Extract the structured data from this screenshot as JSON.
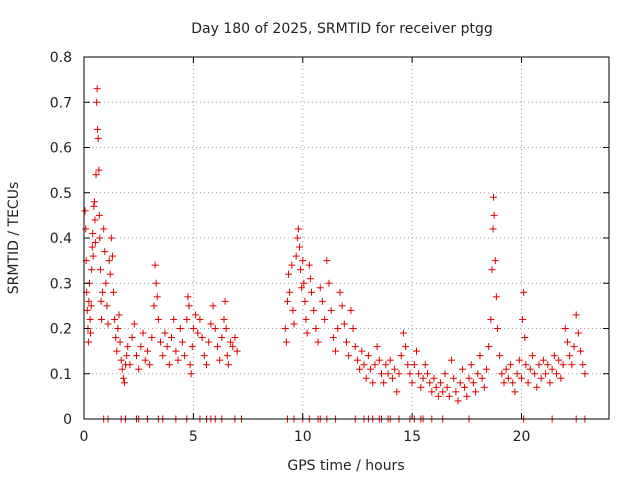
{
  "chart_data": {
    "type": "scatter",
    "title": "Day 180 of 2025, SRMTID for receiver ptgg",
    "xlabel": "GPS time / hours",
    "ylabel": "SRMTID / TECUs",
    "xlim": [
      0,
      24
    ],
    "ylim": [
      0,
      0.8
    ],
    "xticks": [
      0,
      5,
      10,
      15,
      20
    ],
    "xtick_labels": [
      "0",
      "5",
      "10",
      "15",
      "20"
    ],
    "yticks": [
      0,
      0.1,
      0.2,
      0.3,
      0.4,
      0.5,
      0.6,
      0.7,
      0.8
    ],
    "ytick_labels": [
      "0",
      "0.1",
      "0.2",
      "0.3",
      "0.4",
      "0.5",
      "0.6",
      "0.7",
      "0.8"
    ],
    "grid": true,
    "marker": "+",
    "color": "#e00000",
    "series": [
      {
        "name": "SRMTID",
        "points": [
          [
            0.05,
            0.46
          ],
          [
            0.08,
            0.42
          ],
          [
            0.1,
            0.35
          ],
          [
            0.12,
            0.28
          ],
          [
            0.15,
            0.24
          ],
          [
            0.18,
            0.2
          ],
          [
            0.2,
            0.17
          ],
          [
            0.22,
            0.26
          ],
          [
            0.25,
            0.3
          ],
          [
            0.28,
            0.22
          ],
          [
            0.3,
            0.19
          ],
          [
            0.33,
            0.25
          ],
          [
            0.35,
            0.33
          ],
          [
            0.38,
            0.38
          ],
          [
            0.4,
            0.41
          ],
          [
            0.42,
            0.36
          ],
          [
            0.45,
            0.47
          ],
          [
            0.48,
            0.48
          ],
          [
            0.5,
            0.44
          ],
          [
            0.52,
            0.39
          ],
          [
            0.55,
            0.54
          ],
          [
            0.58,
            0.7
          ],
          [
            0.6,
            0.73
          ],
          [
            0.62,
            0.64
          ],
          [
            0.65,
            0.62
          ],
          [
            0.68,
            0.55
          ],
          [
            0.7,
            0.45
          ],
          [
            0.72,
            0.4
          ],
          [
            0.75,
            0.33
          ],
          [
            0.78,
            0.26
          ],
          [
            0.8,
            0.22
          ],
          [
            0.85,
            0.28
          ],
          [
            0.9,
            0.42
          ],
          [
            0.95,
            0.37
          ],
          [
            1.0,
            0.3
          ],
          [
            1.05,
            0.25
          ],
          [
            1.1,
            0.21
          ],
          [
            1.15,
            0.35
          ],
          [
            1.2,
            0.32
          ],
          [
            1.25,
            0.4
          ],
          [
            1.3,
            0.36
          ],
          [
            1.35,
            0.28
          ],
          [
            1.4,
            0.22
          ],
          [
            1.45,
            0.18
          ],
          [
            1.5,
            0.15
          ],
          [
            1.55,
            0.2
          ],
          [
            1.6,
            0.23
          ],
          [
            1.65,
            0.17
          ],
          [
            1.7,
            0.13
          ],
          [
            1.75,
            0.11
          ],
          [
            1.8,
            0.09
          ],
          [
            1.85,
            0.08
          ],
          [
            1.9,
            0.12
          ],
          [
            1.95,
            0.14
          ],
          [
            2.0,
            0.16
          ],
          [
            2.1,
            0.12
          ],
          [
            2.2,
            0.18
          ],
          [
            2.3,
            0.21
          ],
          [
            2.4,
            0.14
          ],
          [
            2.5,
            0.11
          ],
          [
            2.6,
            0.16
          ],
          [
            2.7,
            0.19
          ],
          [
            2.8,
            0.13
          ],
          [
            2.9,
            0.15
          ],
          [
            3.0,
            0.12
          ],
          [
            3.1,
            0.18
          ],
          [
            3.2,
            0.25
          ],
          [
            3.25,
            0.34
          ],
          [
            3.3,
            0.3
          ],
          [
            3.35,
            0.27
          ],
          [
            3.4,
            0.22
          ],
          [
            3.5,
            0.17
          ],
          [
            3.6,
            0.14
          ],
          [
            3.7,
            0.19
          ],
          [
            3.8,
            0.16
          ],
          [
            3.9,
            0.12
          ],
          [
            4.0,
            0.18
          ],
          [
            4.1,
            0.22
          ],
          [
            4.2,
            0.15
          ],
          [
            4.3,
            0.13
          ],
          [
            4.4,
            0.2
          ],
          [
            4.5,
            0.17
          ],
          [
            4.6,
            0.14
          ],
          [
            4.7,
            0.22
          ],
          [
            4.75,
            0.27
          ],
          [
            4.8,
            0.25
          ],
          [
            4.85,
            0.12
          ],
          [
            4.9,
            0.1
          ],
          [
            4.95,
            0.16
          ],
          [
            5.0,
            0.2
          ],
          [
            5.1,
            0.23
          ],
          [
            5.2,
            0.19
          ],
          [
            5.3,
            0.22
          ],
          [
            5.4,
            0.18
          ],
          [
            5.5,
            0.14
          ],
          [
            5.6,
            0.12
          ],
          [
            5.7,
            0.17
          ],
          [
            5.8,
            0.21
          ],
          [
            5.9,
            0.25
          ],
          [
            6.0,
            0.2
          ],
          [
            6.1,
            0.16
          ],
          [
            6.2,
            0.13
          ],
          [
            6.3,
            0.18
          ],
          [
            6.4,
            0.22
          ],
          [
            6.45,
            0.26
          ],
          [
            6.5,
            0.2
          ],
          [
            6.55,
            0.14
          ],
          [
            6.6,
            0.12
          ],
          [
            6.7,
            0.17
          ],
          [
            6.8,
            0.16
          ],
          [
            6.9,
            0.18
          ],
          [
            7.0,
            0.15
          ],
          [
            9.2,
            0.2
          ],
          [
            9.25,
            0.17
          ],
          [
            9.3,
            0.26
          ],
          [
            9.35,
            0.32
          ],
          [
            9.4,
            0.28
          ],
          [
            9.5,
            0.34
          ],
          [
            9.55,
            0.24
          ],
          [
            9.6,
            0.21
          ],
          [
            9.7,
            0.36
          ],
          [
            9.75,
            0.4
          ],
          [
            9.8,
            0.42
          ],
          [
            9.85,
            0.38
          ],
          [
            9.9,
            0.33
          ],
          [
            9.95,
            0.29
          ],
          [
            10.0,
            0.35
          ],
          [
            10.05,
            0.3
          ],
          [
            10.1,
            0.26
          ],
          [
            10.15,
            0.22
          ],
          [
            10.2,
            0.19
          ],
          [
            10.3,
            0.34
          ],
          [
            10.35,
            0.31
          ],
          [
            10.4,
            0.28
          ],
          [
            10.5,
            0.24
          ],
          [
            10.6,
            0.2
          ],
          [
            10.7,
            0.17
          ],
          [
            10.8,
            0.29
          ],
          [
            10.9,
            0.26
          ],
          [
            11.0,
            0.22
          ],
          [
            11.1,
            0.35
          ],
          [
            11.2,
            0.3
          ],
          [
            11.3,
            0.24
          ],
          [
            11.4,
            0.18
          ],
          [
            11.5,
            0.15
          ],
          [
            11.6,
            0.2
          ],
          [
            11.7,
            0.28
          ],
          [
            11.8,
            0.25
          ],
          [
            11.9,
            0.21
          ],
          [
            12.0,
            0.17
          ],
          [
            12.1,
            0.14
          ],
          [
            12.2,
            0.24
          ],
          [
            12.3,
            0.2
          ],
          [
            12.4,
            0.16
          ],
          [
            12.5,
            0.13
          ],
          [
            12.6,
            0.11
          ],
          [
            12.7,
            0.15
          ],
          [
            12.8,
            0.12
          ],
          [
            12.9,
            0.09
          ],
          [
            13.0,
            0.14
          ],
          [
            13.1,
            0.11
          ],
          [
            13.2,
            0.08
          ],
          [
            13.3,
            0.12
          ],
          [
            13.4,
            0.16
          ],
          [
            13.5,
            0.13
          ],
          [
            13.6,
            0.1
          ],
          [
            13.7,
            0.08
          ],
          [
            13.8,
            0.12
          ],
          [
            13.9,
            0.1
          ],
          [
            14.0,
            0.13
          ],
          [
            14.1,
            0.09
          ],
          [
            14.2,
            0.11
          ],
          [
            14.3,
            0.06
          ],
          [
            14.4,
            0.1
          ],
          [
            14.5,
            0.14
          ],
          [
            14.6,
            0.19
          ],
          [
            14.7,
            0.16
          ],
          [
            14.8,
            0.12
          ],
          [
            14.9,
            0.1
          ],
          [
            15.0,
            0.08
          ],
          [
            15.1,
            0.12
          ],
          [
            15.2,
            0.15
          ],
          [
            15.3,
            0.1
          ],
          [
            15.4,
            0.07
          ],
          [
            15.5,
            0.09
          ],
          [
            15.6,
            0.12
          ],
          [
            15.7,
            0.1
          ],
          [
            15.8,
            0.08
          ],
          [
            15.9,
            0.06
          ],
          [
            16.0,
            0.09
          ],
          [
            16.1,
            0.07
          ],
          [
            16.2,
            0.05
          ],
          [
            16.3,
            0.08
          ],
          [
            16.4,
            0.06
          ],
          [
            16.5,
            0.1
          ],
          [
            16.6,
            0.07
          ],
          [
            16.7,
            0.05
          ],
          [
            16.8,
            0.13
          ],
          [
            16.9,
            0.09
          ],
          [
            17.0,
            0.06
          ],
          [
            17.1,
            0.04
          ],
          [
            17.2,
            0.08
          ],
          [
            17.3,
            0.11
          ],
          [
            17.4,
            0.07
          ],
          [
            17.5,
            0.05
          ],
          [
            17.6,
            0.09
          ],
          [
            17.7,
            0.12
          ],
          [
            17.8,
            0.08
          ],
          [
            17.9,
            0.06
          ],
          [
            18.0,
            0.1
          ],
          [
            18.1,
            0.14
          ],
          [
            18.2,
            0.09
          ],
          [
            18.3,
            0.07
          ],
          [
            18.4,
            0.11
          ],
          [
            18.5,
            0.16
          ],
          [
            18.6,
            0.22
          ],
          [
            18.65,
            0.33
          ],
          [
            18.7,
            0.42
          ],
          [
            18.72,
            0.49
          ],
          [
            18.75,
            0.45
          ],
          [
            18.8,
            0.35
          ],
          [
            18.85,
            0.27
          ],
          [
            18.9,
            0.2
          ],
          [
            19.0,
            0.14
          ],
          [
            19.1,
            0.1
          ],
          [
            19.2,
            0.08
          ],
          [
            19.3,
            0.11
          ],
          [
            19.4,
            0.09
          ],
          [
            19.5,
            0.12
          ],
          [
            19.6,
            0.08
          ],
          [
            19.7,
            0.06
          ],
          [
            19.8,
            0.1
          ],
          [
            19.9,
            0.13
          ],
          [
            20.0,
            0.09
          ],
          [
            20.05,
            0.22
          ],
          [
            20.1,
            0.28
          ],
          [
            20.15,
            0.18
          ],
          [
            20.2,
            0.12
          ],
          [
            20.3,
            0.08
          ],
          [
            20.4,
            0.11
          ],
          [
            20.5,
            0.14
          ],
          [
            20.6,
            0.1
          ],
          [
            20.7,
            0.07
          ],
          [
            20.8,
            0.12
          ],
          [
            20.9,
            0.09
          ],
          [
            21.0,
            0.13
          ],
          [
            21.1,
            0.1
          ],
          [
            21.2,
            0.12
          ],
          [
            21.3,
            0.08
          ],
          [
            21.4,
            0.11
          ],
          [
            21.5,
            0.14
          ],
          [
            21.6,
            0.1
          ],
          [
            21.7,
            0.13
          ],
          [
            21.8,
            0.09
          ],
          [
            21.9,
            0.12
          ],
          [
            22.0,
            0.2
          ],
          [
            22.1,
            0.17
          ],
          [
            22.2,
            0.14
          ],
          [
            22.3,
            0.12
          ],
          [
            22.4,
            0.16
          ],
          [
            22.5,
            0.23
          ],
          [
            22.6,
            0.19
          ],
          [
            22.7,
            0.15
          ],
          [
            22.8,
            0.12
          ],
          [
            22.9,
            0.1
          ],
          [
            0.9,
            0.0
          ],
          [
            1.1,
            0.0
          ],
          [
            1.7,
            0.0
          ],
          [
            1.9,
            0.0
          ],
          [
            2.4,
            0.0
          ],
          [
            2.5,
            0.0
          ],
          [
            2.9,
            0.0
          ],
          [
            3.4,
            0.0
          ],
          [
            3.6,
            0.0
          ],
          [
            4.2,
            0.0
          ],
          [
            4.7,
            0.0
          ],
          [
            5.3,
            0.0
          ],
          [
            5.6,
            0.0
          ],
          [
            5.8,
            0.0
          ],
          [
            6.0,
            0.0
          ],
          [
            6.3,
            0.0
          ],
          [
            6.9,
            0.0
          ],
          [
            7.2,
            0.0
          ],
          [
            9.3,
            0.0
          ],
          [
            9.6,
            0.0
          ],
          [
            10.0,
            0.0
          ],
          [
            10.3,
            0.0
          ],
          [
            10.7,
            0.0
          ],
          [
            10.8,
            0.0
          ],
          [
            11.1,
            0.0
          ],
          [
            11.5,
            0.0
          ],
          [
            12.4,
            0.0
          ],
          [
            12.8,
            0.0
          ],
          [
            13.0,
            0.0
          ],
          [
            13.2,
            0.0
          ],
          [
            13.5,
            0.0
          ],
          [
            13.6,
            0.0
          ],
          [
            13.9,
            0.0
          ],
          [
            14.0,
            0.0
          ],
          [
            14.4,
            0.0
          ],
          [
            14.9,
            0.0
          ],
          [
            15.1,
            0.0
          ],
          [
            15.4,
            0.0
          ],
          [
            15.5,
            0.0
          ],
          [
            15.9,
            0.0
          ],
          [
            16.4,
            0.0
          ],
          [
            17.6,
            0.0
          ],
          [
            20.1,
            0.0
          ],
          [
            21.4,
            0.0
          ],
          [
            22.5,
            0.0
          ],
          [
            22.9,
            0.0
          ]
        ]
      }
    ]
  }
}
